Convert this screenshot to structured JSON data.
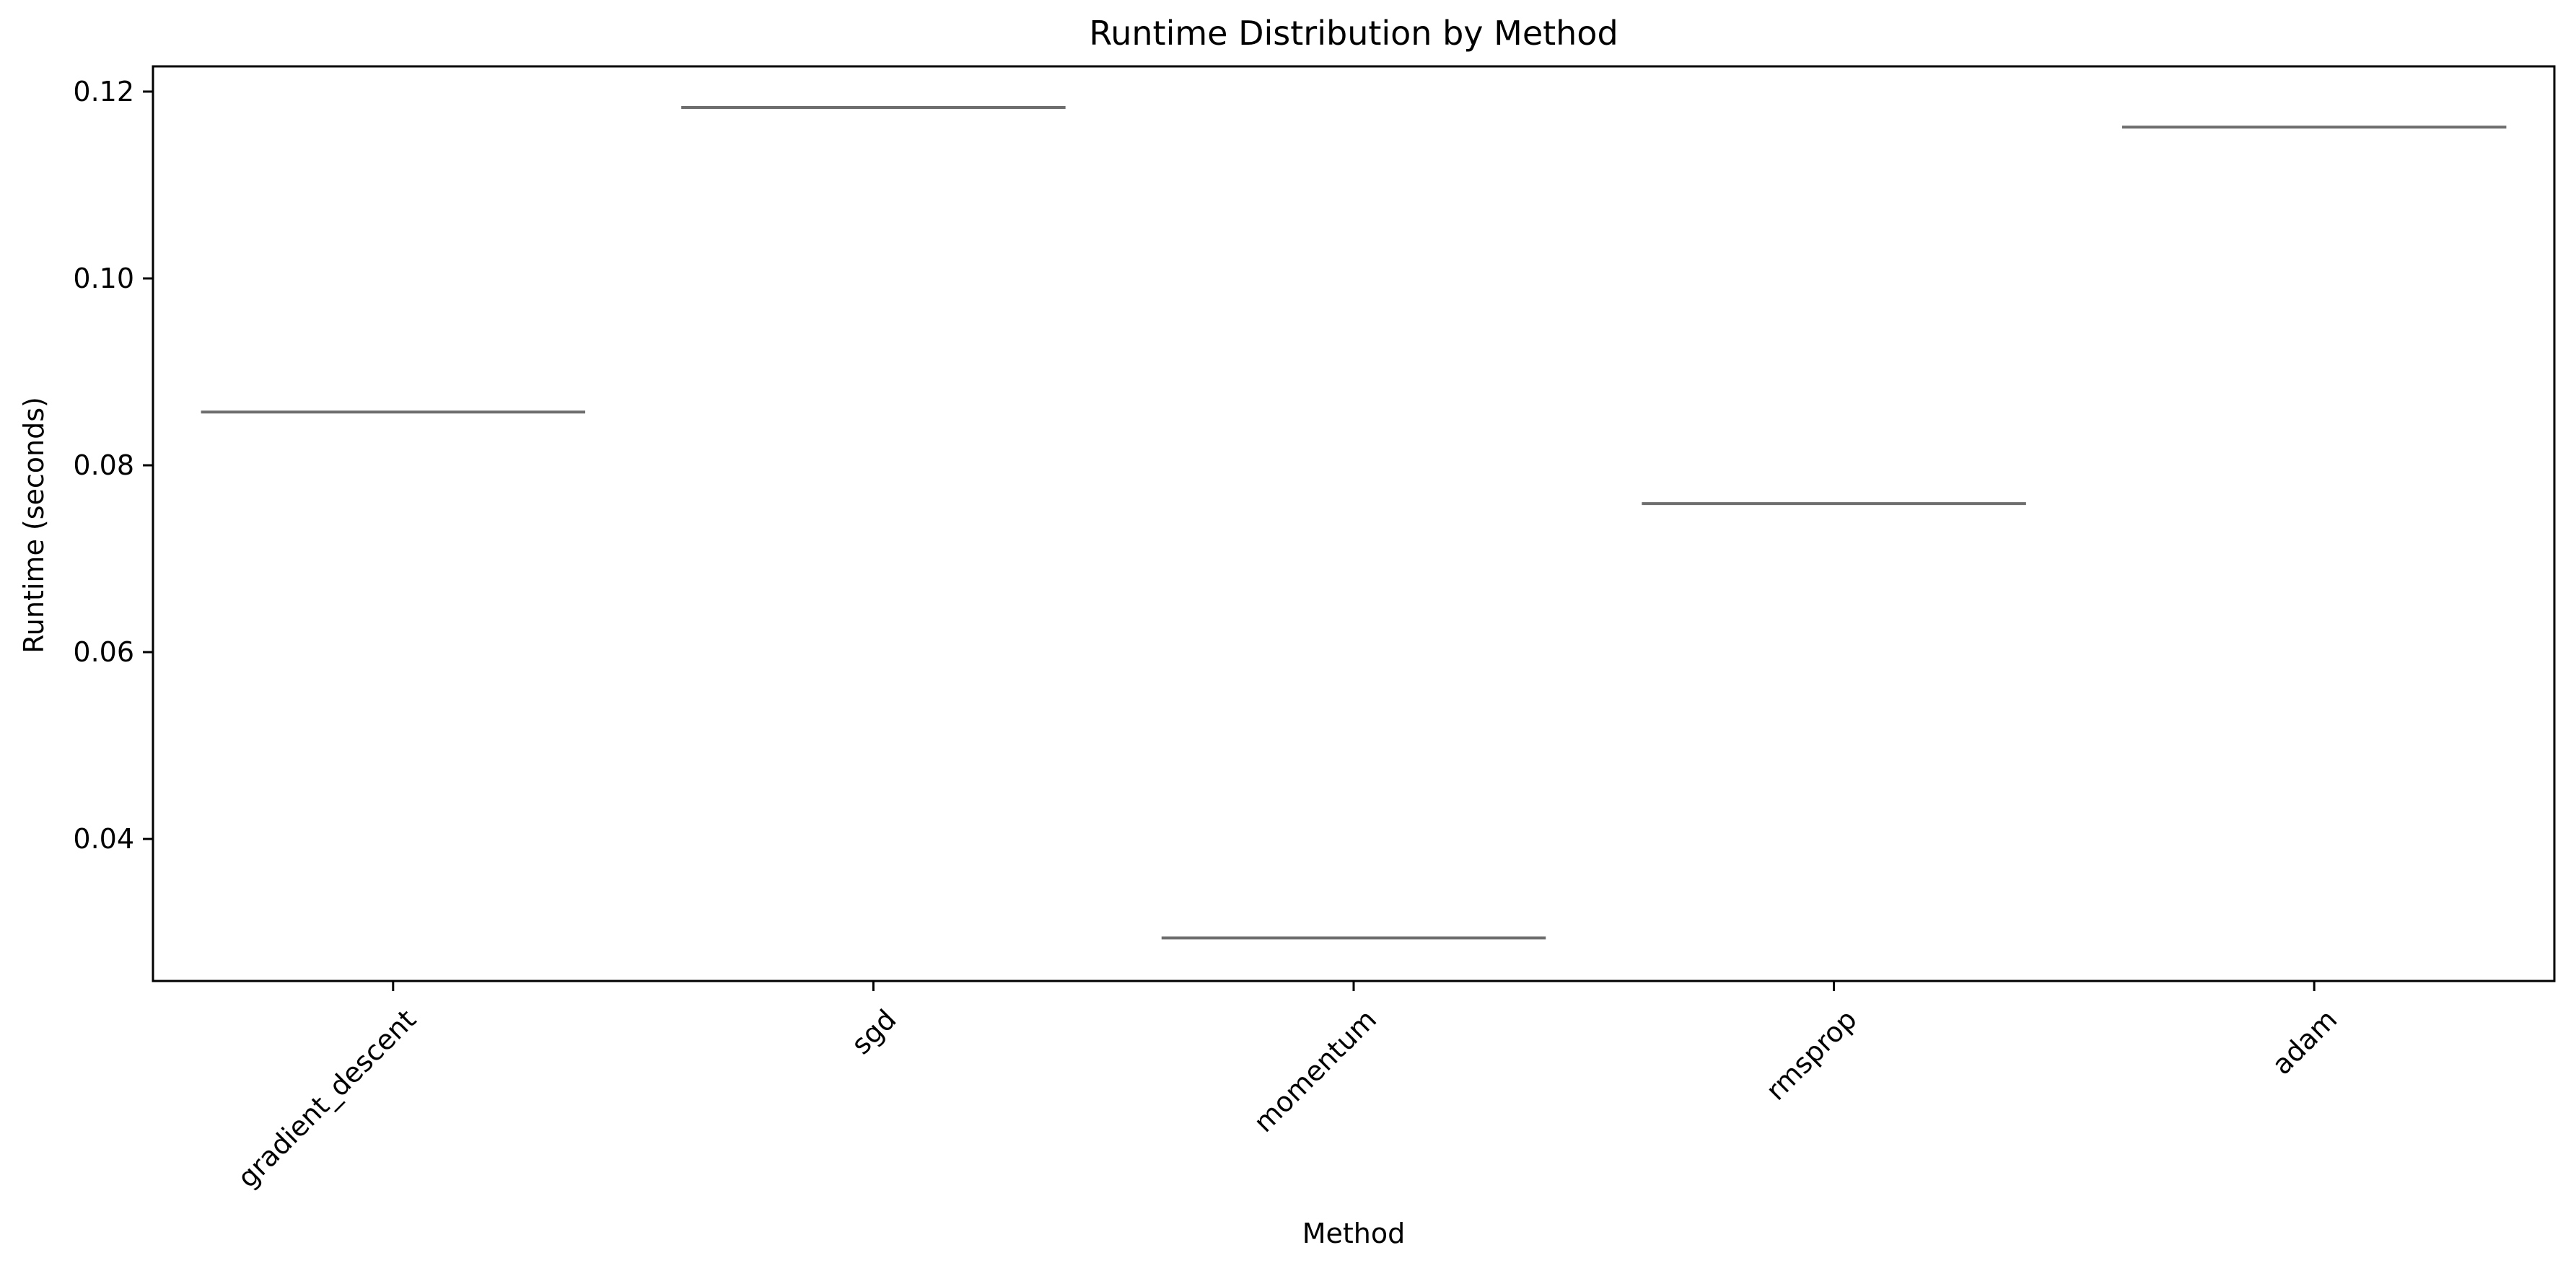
{
  "chart_data": {
    "type": "box",
    "title": "Runtime Distribution by Method",
    "xlabel": "Method",
    "ylabel": "Runtime (seconds)",
    "categories": [
      "gradient_descent",
      "sgd",
      "momentum",
      "rmsprop",
      "adam"
    ],
    "values": [
      0.0857,
      0.1183,
      0.0294,
      0.0759,
      0.1162
    ],
    "ylim": [
      0.0248,
      0.1227
    ],
    "yticks": [
      "0.04",
      "0.06",
      "0.08",
      "0.10",
      "0.12"
    ],
    "grid": false,
    "legend": "none",
    "colors": {
      "median_line": "#6e6e6e",
      "axes": "#000000",
      "text": "#000000",
      "background": "#ffffff"
    }
  }
}
